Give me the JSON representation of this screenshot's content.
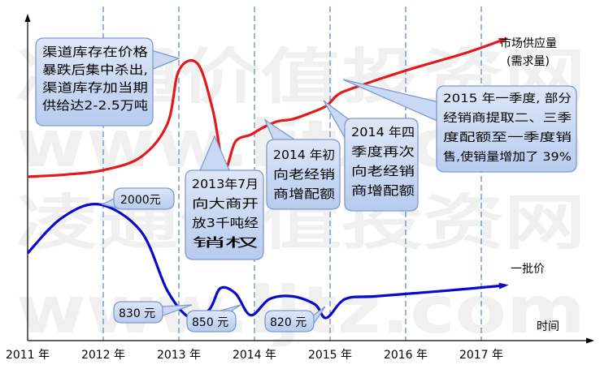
{
  "chart_data": {
    "type": "line",
    "title": "",
    "xlabel": "时间",
    "ylabel": "",
    "x_ticks": [
      "2011 年",
      "2012 年",
      "2013 年",
      "2014 年",
      "2015 年",
      "2016 年",
      "2017 年"
    ],
    "grid": "vertical dashed lines at each year",
    "legend": "series names printed at line ends (right)",
    "series": [
      {
        "name": "市场供应量\n(需求量)",
        "color": "#e31a1c",
        "description_of_values": "relative level only, no y scale printed",
        "points": [
          [
            2011.0,
            1.0
          ],
          [
            2011.5,
            1.1
          ],
          [
            2012.0,
            1.3
          ],
          [
            2012.5,
            1.9
          ],
          [
            2012.85,
            3.4
          ],
          [
            2013.0,
            5.8
          ],
          [
            2013.25,
            6.1
          ],
          [
            2013.45,
            4.0
          ],
          [
            2013.6,
            1.4
          ],
          [
            2013.75,
            2.6
          ],
          [
            2013.95,
            2.9
          ],
          [
            2014.1,
            3.2
          ],
          [
            2014.3,
            3.5
          ],
          [
            2014.5,
            3.6
          ],
          [
            2014.75,
            3.9
          ],
          [
            2014.95,
            4.2
          ],
          [
            2015.1,
            4.7
          ],
          [
            2015.3,
            5.0
          ],
          [
            2016.0,
            5.8
          ],
          [
            2016.8,
            6.6
          ],
          [
            2017.3,
            7.2
          ]
        ]
      },
      {
        "name": "一批价",
        "color": "#0a0acc",
        "description_of_values": "relative level only, no y scale printed",
        "points": [
          [
            2011.0,
            3.3
          ],
          [
            2011.45,
            4.6
          ],
          [
            2011.95,
            5.1
          ],
          [
            2012.5,
            4.1
          ],
          [
            2012.85,
            1.9
          ],
          [
            2013.15,
            0.9
          ],
          [
            2013.4,
            1.2
          ],
          [
            2013.55,
            2.0
          ],
          [
            2013.75,
            1.8
          ],
          [
            2013.95,
            1.0
          ],
          [
            2014.2,
            1.6
          ],
          [
            2014.5,
            1.7
          ],
          [
            2014.8,
            1.4
          ],
          [
            2014.95,
            0.9
          ],
          [
            2015.2,
            1.6
          ],
          [
            2015.6,
            1.7
          ],
          [
            2016.5,
            1.9
          ],
          [
            2017.3,
            2.1
          ]
        ]
      }
    ],
    "annotations": [
      {
        "id": "a1",
        "lines": [
          "渠道库存在价格",
          "暴跌后集中杀出,",
          "渠道库存加当期",
          "供给达2-2.5万吨"
        ]
      },
      {
        "id": "a2",
        "lines": [
          "2013年7月",
          "向大商开",
          "放3千吨经",
          "销权"
        ]
      },
      {
        "id": "a3",
        "lines": [
          "2014 年初",
          "向老经销",
          "商增配额"
        ]
      },
      {
        "id": "a4",
        "lines": [
          "2014 年四",
          "季度再次",
          "向老经销",
          "商增配额"
        ]
      },
      {
        "id": "a5",
        "lines": [
          "2015 年一季度, 部分",
          "经销商提取二、三季",
          "度配额至一季度销",
          "售,使销量增加了 39%"
        ]
      }
    ],
    "price_labels": [
      {
        "id": "p2000",
        "text": "2000元"
      },
      {
        "id": "p830",
        "text": "830 元"
      },
      {
        "id": "p850",
        "text": "850 元"
      },
      {
        "id": "p820",
        "text": "820 元"
      }
    ],
    "watermark": [
      "凌通价值投资网",
      "www.ljtz.com"
    ]
  }
}
